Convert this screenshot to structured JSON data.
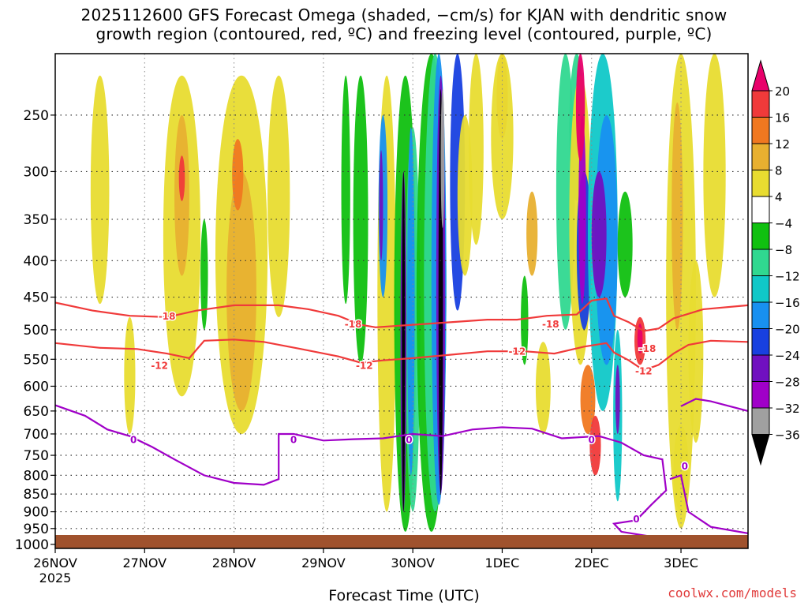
{
  "title_line1": "2025112600 GFS Forecast Omega (shaded, −cm/s) for KJAN with dendritic snow",
  "title_line2": "growth region (contoured, red, ºC) and freezing level (contoured, purple, ºC)",
  "credit": "coolwx.com/models",
  "chart_data": {
    "type": "heatmap",
    "title": "2025112600 GFS Forecast Omega (shaded, −cm/s) for KJAN with dendritic snow growth region (contoured, red, ºC) and freezing level (contoured, purple, ºC)",
    "xlabel": "Forecast Time (UTC)",
    "ylabel": "",
    "x_ticks": [
      {
        "label": "26NOV",
        "sub": "2025",
        "hour": 0
      },
      {
        "label": "27NOV",
        "hour": 24
      },
      {
        "label": "28NOV",
        "hour": 48
      },
      {
        "label": "29NOV",
        "hour": 72
      },
      {
        "label": "30NOV",
        "hour": 96
      },
      {
        "label": "1DEC",
        "hour": 120
      },
      {
        "label": "2DEC",
        "hour": 144
      },
      {
        "label": "3DEC",
        "hour": 168
      }
    ],
    "xlim_hours": [
      0,
      186
    ],
    "y_ticks": [
      250,
      300,
      350,
      400,
      450,
      500,
      550,
      600,
      650,
      700,
      750,
      800,
      850,
      900,
      950,
      1000
    ],
    "ylim_hPa": [
      1013,
      205
    ],
    "grid": true,
    "colorbar": {
      "labels": [
        "20",
        "16",
        "12",
        "8",
        "4",
        "−4",
        "−8",
        "−12",
        "−16",
        "−20",
        "−24",
        "−28",
        "−32",
        "−36"
      ],
      "colors": [
        "#e8006a",
        "#f03a3a",
        "#f07820",
        "#e8b030",
        "#e8dc30",
        "#ffffff",
        "#10c010",
        "#30d890",
        "#10c8c8",
        "#1890f0",
        "#1840e0",
        "#7010c0",
        "#a000c8",
        "#a0a0a0",
        "#000000"
      ]
    },
    "contour_labels": [
      {
        "text": "-18",
        "hour": 30,
        "p": 478
      },
      {
        "text": "-12",
        "hour": 28,
        "p": 560
      },
      {
        "text": "-18",
        "hour": 80,
        "p": 490
      },
      {
        "text": "-12",
        "hour": 83,
        "p": 560
      },
      {
        "text": "-18",
        "hour": 133,
        "p": 490
      },
      {
        "text": "-12",
        "hour": 124,
        "p": 535
      },
      {
        "text": "-18",
        "hour": 159,
        "p": 530
      },
      {
        "text": "-12",
        "hour": 158,
        "p": 570
      },
      {
        "text": "0",
        "hour": 21,
        "p": 712
      },
      {
        "text": "0",
        "hour": 64,
        "p": 712
      },
      {
        "text": "0",
        "hour": 95,
        "p": 712
      },
      {
        "text": "0",
        "hour": 144,
        "p": 712
      },
      {
        "text": "0",
        "hour": 169,
        "p": 775
      },
      {
        "text": "0",
        "hour": 156,
        "p": 920
      }
    ]
  }
}
